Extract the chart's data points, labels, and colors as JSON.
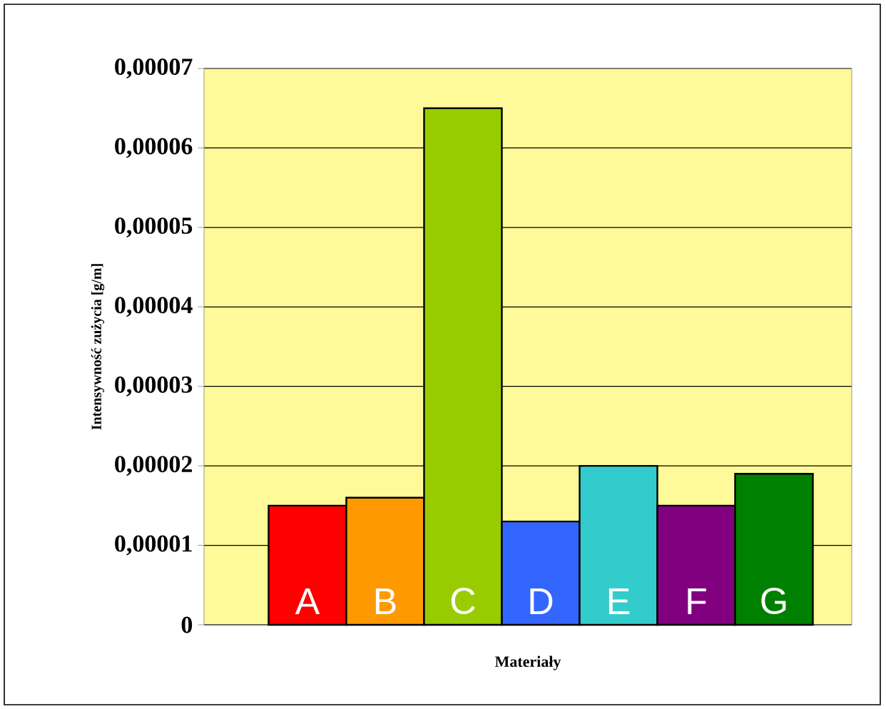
{
  "chart_data": {
    "type": "bar",
    "xlabel": "Materiały",
    "ylabel": "Intensywność zużycia [g/m]",
    "categories": [
      "A",
      "B",
      "C",
      "D",
      "E",
      "F",
      "G"
    ],
    "values": [
      1.5e-05,
      1.6e-05,
      6.5e-05,
      1.3e-05,
      2e-05,
      1.5e-05,
      1.9e-05
    ],
    "colors": [
      "#ff0000",
      "#ff9900",
      "#99cc00",
      "#3366ff",
      "#33cccc",
      "#800080",
      "#008000"
    ],
    "ylim": [
      0,
      7e-05
    ],
    "yticks": [
      0,
      {
        "value": 1e-05,
        "label": "0,00001"
      },
      {
        "value": 2e-05,
        "label": "0,00002"
      },
      {
        "value": 3e-05,
        "label": "0,00003"
      },
      {
        "value": 4e-05,
        "label": "0,00004"
      },
      {
        "value": 5e-05,
        "label": "0,00005"
      },
      {
        "value": 6e-05,
        "label": "0,00006"
      },
      {
        "value": 7e-05,
        "label": "0,00007"
      }
    ],
    "grid": "y"
  }
}
